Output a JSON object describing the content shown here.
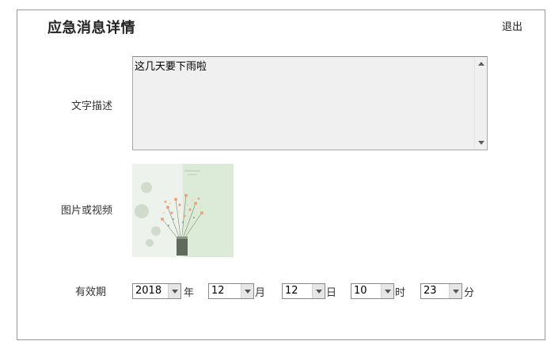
{
  "header": {
    "title": "应急消息详情",
    "exit_label": "退出"
  },
  "form": {
    "description_label": "文字描述",
    "description_value": "这几天要下雨啦",
    "media_label": "图片或视频",
    "validity_label": "有效期",
    "validity": {
      "year": {
        "value": "2018",
        "unit": "年"
      },
      "month": {
        "value": "12",
        "unit": "月"
      },
      "day": {
        "value": "12",
        "unit": "日"
      },
      "hour": {
        "value": "10",
        "unit": "时"
      },
      "minute": {
        "value": "23",
        "unit": "分"
      }
    }
  },
  "icons": {
    "scroll_up": "triangle-up-icon",
    "scroll_down": "triangle-down-icon",
    "dropdown": "chevron-down-icon"
  },
  "colors": {
    "panel_border": "#9a9a9a",
    "textarea_bg": "#f0f0f0",
    "dropdown_button": "#e6e6e6"
  }
}
